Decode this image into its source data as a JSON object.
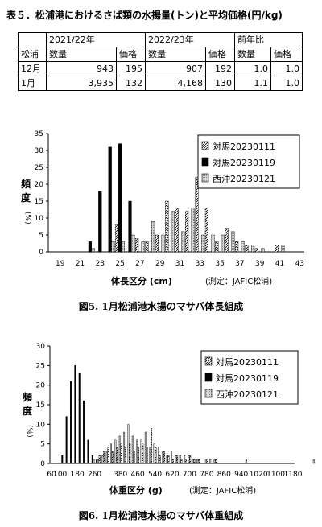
{
  "table": {
    "title": "表５．松浦港におけるさば類の水揚量(トン)と平均価格(円/kg)",
    "corner": "松浦",
    "groups": [
      "2021/22年",
      "2022/23年",
      "前年比"
    ],
    "subheaders": [
      "数量",
      "価格",
      "数量",
      "価格",
      "数量",
      "価格"
    ],
    "rows": [
      {
        "label": "12月",
        "values": [
          "943",
          "195",
          "907",
          "192",
          "1.0",
          "1.0"
        ]
      },
      {
        "label": "1月",
        "values": [
          "3,935",
          "132",
          "4,168",
          "130",
          "1.1",
          "1.0"
        ]
      }
    ]
  },
  "fig5": {
    "caption": "図5.  1月松浦港水揚のマサバ体長組成",
    "ylabel": "頻度",
    "yunit": "(%)",
    "xlabel": "体長区分 (cm)",
    "note": "(測定：JAFIC松浦)",
    "chart_data": {
      "type": "bar",
      "categories": [
        "19",
        "20",
        "21",
        "22",
        "23",
        "24",
        "25",
        "26",
        "27",
        "28",
        "29",
        "30",
        "31",
        "32",
        "33",
        "34",
        "35",
        "36",
        "37",
        "38",
        "39",
        "40",
        "41",
        "42",
        "43"
      ],
      "tick_labels": [
        "19",
        "21",
        "23",
        "25",
        "27",
        "29",
        "31",
        "33",
        "35",
        "37",
        "39",
        "41",
        "43"
      ],
      "ylim": [
        0,
        35
      ],
      "yticks": [
        0,
        5,
        10,
        15,
        20,
        25,
        30,
        35
      ],
      "series": [
        {
          "name": "対馬20230111",
          "pattern": "hatch",
          "values": [
            0,
            0,
            0,
            0,
            0,
            0,
            8,
            0,
            4,
            3,
            5,
            15,
            13,
            12,
            22,
            13,
            3,
            7,
            3,
            2,
            1,
            0,
            2,
            0,
            0
          ]
        },
        {
          "name": "対馬20230119",
          "pattern": "black",
          "values": [
            0,
            0,
            0,
            3,
            18,
            31,
            32,
            15,
            0,
            0,
            0,
            0,
            0,
            0,
            0,
            0,
            0,
            0,
            0,
            0,
            0,
            0,
            0,
            0,
            0
          ]
        },
        {
          "name": "西沖20230121",
          "pattern": "dots",
          "values": [
            0,
            0,
            0,
            1,
            0,
            3,
            3,
            5,
            3,
            9,
            5,
            12,
            6,
            13,
            5,
            5,
            5,
            6,
            3,
            2,
            1,
            0,
            2,
            0,
            0
          ]
        }
      ]
    }
  },
  "fig6": {
    "caption": "図6. 1月松浦港水揚のマサバ体重組成",
    "ylabel": "頻度",
    "yunit": "(%)",
    "xlabel": "体重区分 (g)",
    "note": "(測定：JAFIC松浦)",
    "chart_data": {
      "type": "bar",
      "x_start": 60,
      "x_step": 20,
      "tick_labels": [
        "60",
        "100",
        "180",
        "260",
        "380",
        "460",
        "540",
        "620",
        "700",
        "780",
        "860",
        "940",
        "1020",
        "1100",
        "1180"
      ],
      "ylim": [
        0,
        30
      ],
      "yticks": [
        0,
        5,
        10,
        15,
        20,
        25,
        30
      ],
      "series": [
        {
          "name": "対馬20230111",
          "pattern": "hatch",
          "values": [
            0,
            0,
            0,
            0,
            0,
            0,
            0,
            0,
            0,
            0,
            0,
            2,
            3,
            4,
            3,
            4,
            5,
            4,
            5,
            3,
            4,
            5,
            4,
            9,
            4,
            2,
            3,
            2,
            1,
            2,
            1,
            1,
            2,
            1,
            1,
            0,
            1,
            0,
            1,
            0,
            0,
            0,
            0,
            0,
            0,
            1,
            0,
            0,
            0,
            0,
            0,
            0,
            0,
            0,
            0,
            0,
            0,
            0,
            0,
            0,
            0
          ]
        },
        {
          "name": "対馬20230119",
          "pattern": "black",
          "values": [
            0,
            0,
            2,
            12,
            21,
            25,
            23,
            16,
            6,
            2,
            1,
            0,
            0,
            0,
            0,
            0,
            0,
            0,
            0,
            0,
            0,
            0,
            0,
            0,
            0,
            0,
            0,
            0,
            0,
            0,
            0,
            0,
            0,
            0,
            0,
            0,
            0,
            0,
            0,
            0,
            0,
            0,
            0,
            0,
            0,
            0,
            0,
            0,
            0,
            0,
            0,
            0,
            0,
            0,
            0,
            0,
            0,
            0,
            0,
            0,
            0
          ]
        },
        {
          "name": "西沖20230121",
          "pattern": "dots",
          "values": [
            0,
            0,
            0,
            0,
            0,
            0,
            0,
            0,
            0,
            1,
            1,
            2,
            3,
            5,
            6,
            7,
            8,
            10,
            7,
            6,
            6,
            8,
            4,
            5,
            4,
            3,
            2,
            3,
            2,
            2,
            2,
            2,
            1,
            1,
            0,
            1,
            1,
            1,
            0,
            0,
            0,
            0,
            0,
            0,
            0,
            0,
            0,
            0,
            0,
            0,
            0,
            0,
            0,
            0,
            0,
            0,
            0,
            0,
            0,
            0,
            1
          ]
        }
      ]
    }
  }
}
